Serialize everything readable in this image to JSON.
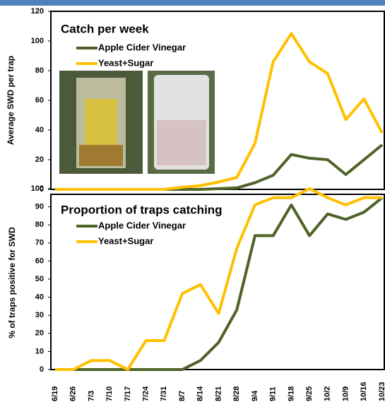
{
  "chart_data": [
    {
      "type": "line",
      "title": "Catch per week",
      "y_label": "Average SWD per trap",
      "ylim": [
        0,
        120
      ],
      "yticks": [
        0,
        20,
        40,
        60,
        80,
        100,
        120
      ],
      "series": [
        {
          "name": "Apple Cider Vinegar",
          "color": "#4f6228",
          "values": [
            0,
            0,
            0,
            0,
            0,
            0,
            0,
            0,
            0,
            0.5,
            1,
            4.5,
            9.5,
            23.5,
            21,
            20,
            10,
            20,
            30
          ]
        },
        {
          "name": "Yeast+Sugar",
          "color": "#ffc000",
          "values": [
            0,
            0,
            0,
            0,
            0,
            0,
            0,
            1.5,
            2.5,
            5,
            8,
            31,
            86,
            105,
            86,
            78,
            47,
            61,
            38
          ]
        }
      ]
    },
    {
      "type": "line",
      "title": "Proportion of traps catching",
      "y_label": "% of traps positive for SWD",
      "categories": [
        "6/19",
        "6/26",
        "7/3",
        "7/10",
        "7/17",
        "7/24",
        "7/31",
        "8/7",
        "8/14",
        "8/21",
        "8/28",
        "9/4",
        "9/11",
        "9/18",
        "9/25",
        "10/2",
        "10/9",
        "10/16",
        "10/23"
      ],
      "ylim": [
        0,
        100
      ],
      "yticks": [
        0,
        10,
        20,
        30,
        40,
        50,
        60,
        70,
        80,
        90,
        100
      ],
      "series": [
        {
          "name": "Apple Cider Vinegar",
          "color": "#4f6228",
          "values": [
            0,
            0,
            0,
            0,
            0,
            0,
            0,
            0,
            5,
            15,
            33,
            74,
            74,
            91,
            74,
            86,
            83,
            87,
            95
          ]
        },
        {
          "name": "Yeast+Sugar",
          "color": "#ffc000",
          "values": [
            0,
            0,
            5,
            5,
            0,
            16,
            16,
            42,
            47,
            31,
            67,
            91,
            95,
            95,
            100,
            95,
            91,
            95,
            95
          ]
        }
      ]
    }
  ]
}
